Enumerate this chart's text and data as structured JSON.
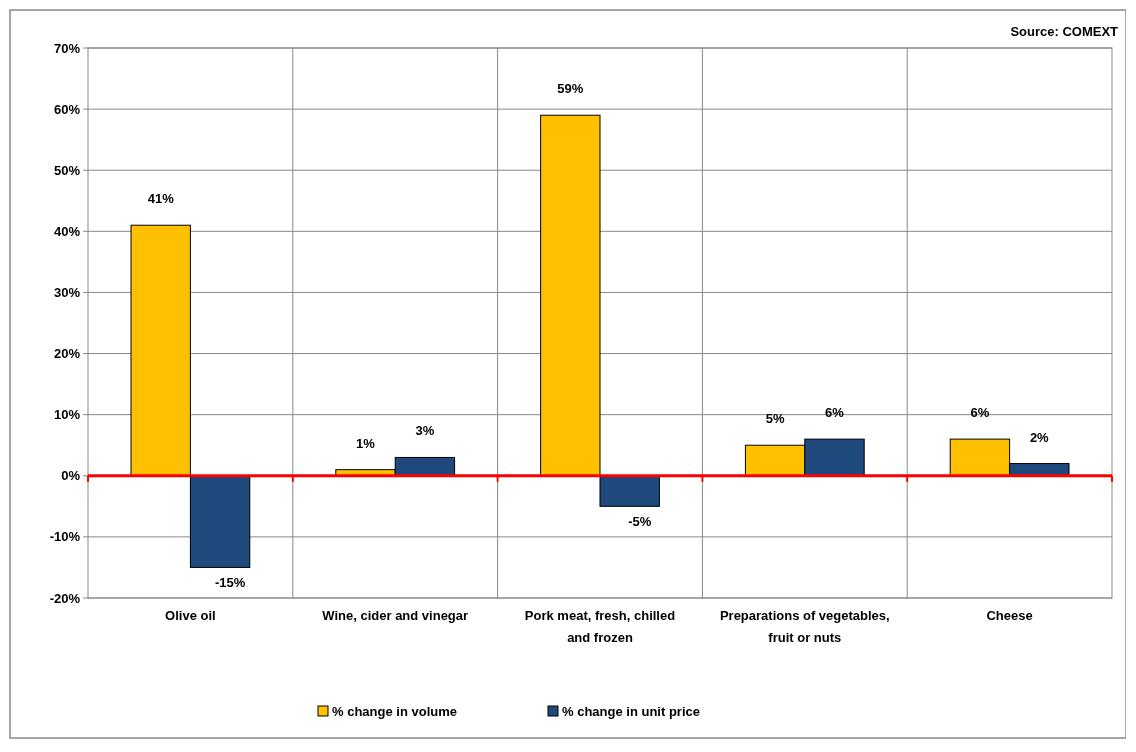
{
  "chart_data": {
    "type": "bar",
    "categories": [
      "Olive oil",
      "Wine, cider and vinegar",
      "Pork meat, fresh, chilled and frozen",
      "Preparations of vegetables, fruit or nuts",
      "Cheese"
    ],
    "series": [
      {
        "name": "% change in volume",
        "color": "#ffc000",
        "values": [
          41,
          1,
          59,
          5,
          6
        ],
        "value_labels": [
          "41%",
          "1%",
          "59%",
          "5%",
          "6%"
        ]
      },
      {
        "name": "% change in unit price",
        "color": "#1f497d",
        "values": [
          -15,
          3,
          -5,
          6,
          2
        ],
        "value_labels": [
          "-15%",
          "3%",
          "-5%",
          "6%",
          "2%"
        ]
      }
    ],
    "ylim": [
      -20,
      70
    ],
    "yticks": [
      {
        "value": -20,
        "label": "-20%"
      },
      {
        "value": -10,
        "label": "-10%"
      },
      {
        "value": 0,
        "label": "0%"
      },
      {
        "value": 10,
        "label": "10%"
      },
      {
        "value": 20,
        "label": "20%"
      },
      {
        "value": 30,
        "label": "30%"
      },
      {
        "value": 40,
        "label": "40%"
      },
      {
        "value": 50,
        "label": "50%"
      },
      {
        "value": 60,
        "label": "60%"
      },
      {
        "value": 70,
        "label": "70%"
      }
    ],
    "grid": true,
    "legend": "bottom",
    "ref_lines": [
      {
        "axis": "y",
        "value": 0,
        "color": "#ff0000"
      }
    ],
    "annotations": [
      "Source: COMEXT"
    ]
  }
}
